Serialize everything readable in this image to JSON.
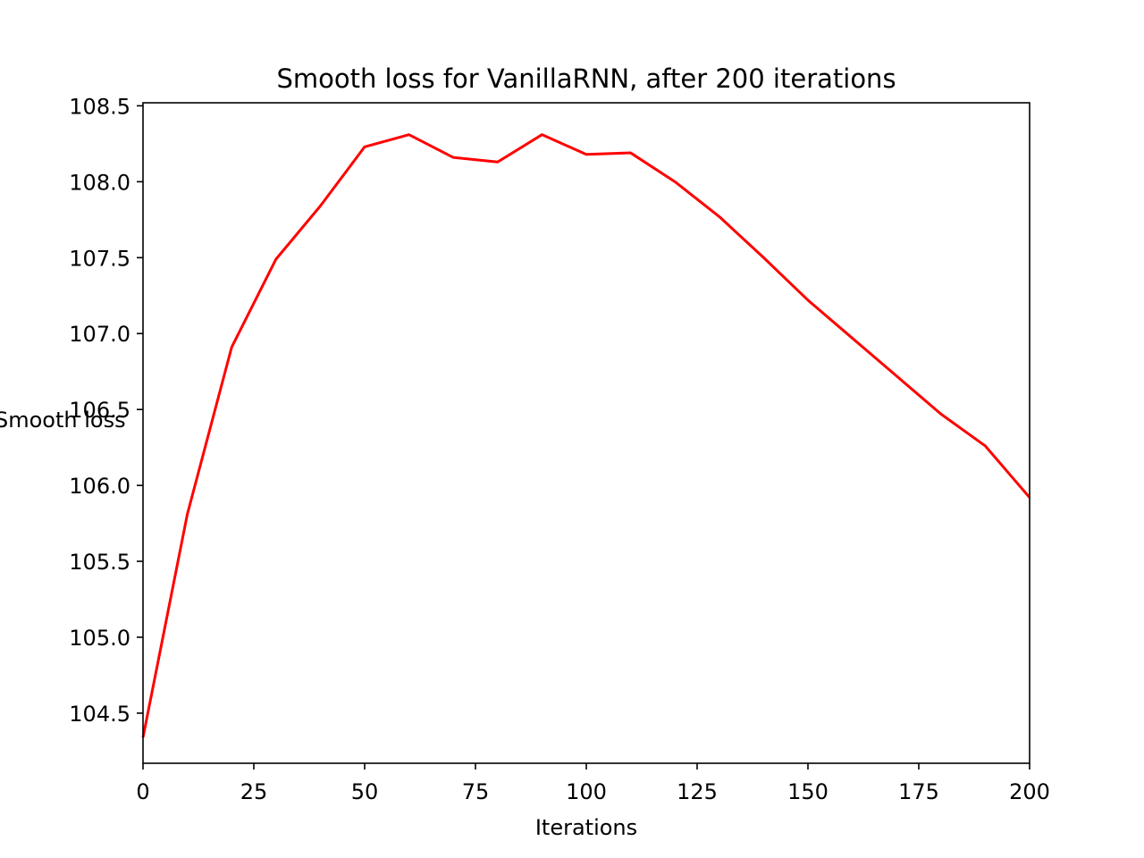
{
  "chart_data": {
    "type": "line",
    "title": "Smooth loss for VanillaRNN, after 200 iterations",
    "xlabel": "Iterations",
    "ylabel": "Smooth loss",
    "xlim": [
      0,
      200
    ],
    "ylim": [
      104.17,
      108.52
    ],
    "xticks": [
      0,
      25,
      50,
      75,
      100,
      125,
      150,
      175,
      200
    ],
    "yticks": [
      104.5,
      105.0,
      105.5,
      106.0,
      106.5,
      107.0,
      107.5,
      108.0,
      108.5
    ],
    "ytick_labels": [
      "104.5",
      "105.0",
      "105.5",
      "106.0",
      "106.5",
      "107.0",
      "107.5",
      "108.0",
      "108.5"
    ],
    "grid": false,
    "series": [
      {
        "color": "#ff0000",
        "x": [
          0,
          10,
          20,
          30,
          40,
          50,
          60,
          70,
          80,
          90,
          100,
          110,
          120,
          130,
          140,
          150,
          160,
          170,
          180,
          190,
          200
        ],
        "y": [
          104.34,
          105.81,
          106.91,
          107.49,
          107.84,
          108.23,
          108.31,
          108.16,
          108.13,
          108.31,
          108.18,
          108.19,
          108.0,
          107.77,
          107.5,
          107.22,
          106.97,
          106.72,
          106.47,
          106.26,
          105.92
        ]
      }
    ]
  }
}
